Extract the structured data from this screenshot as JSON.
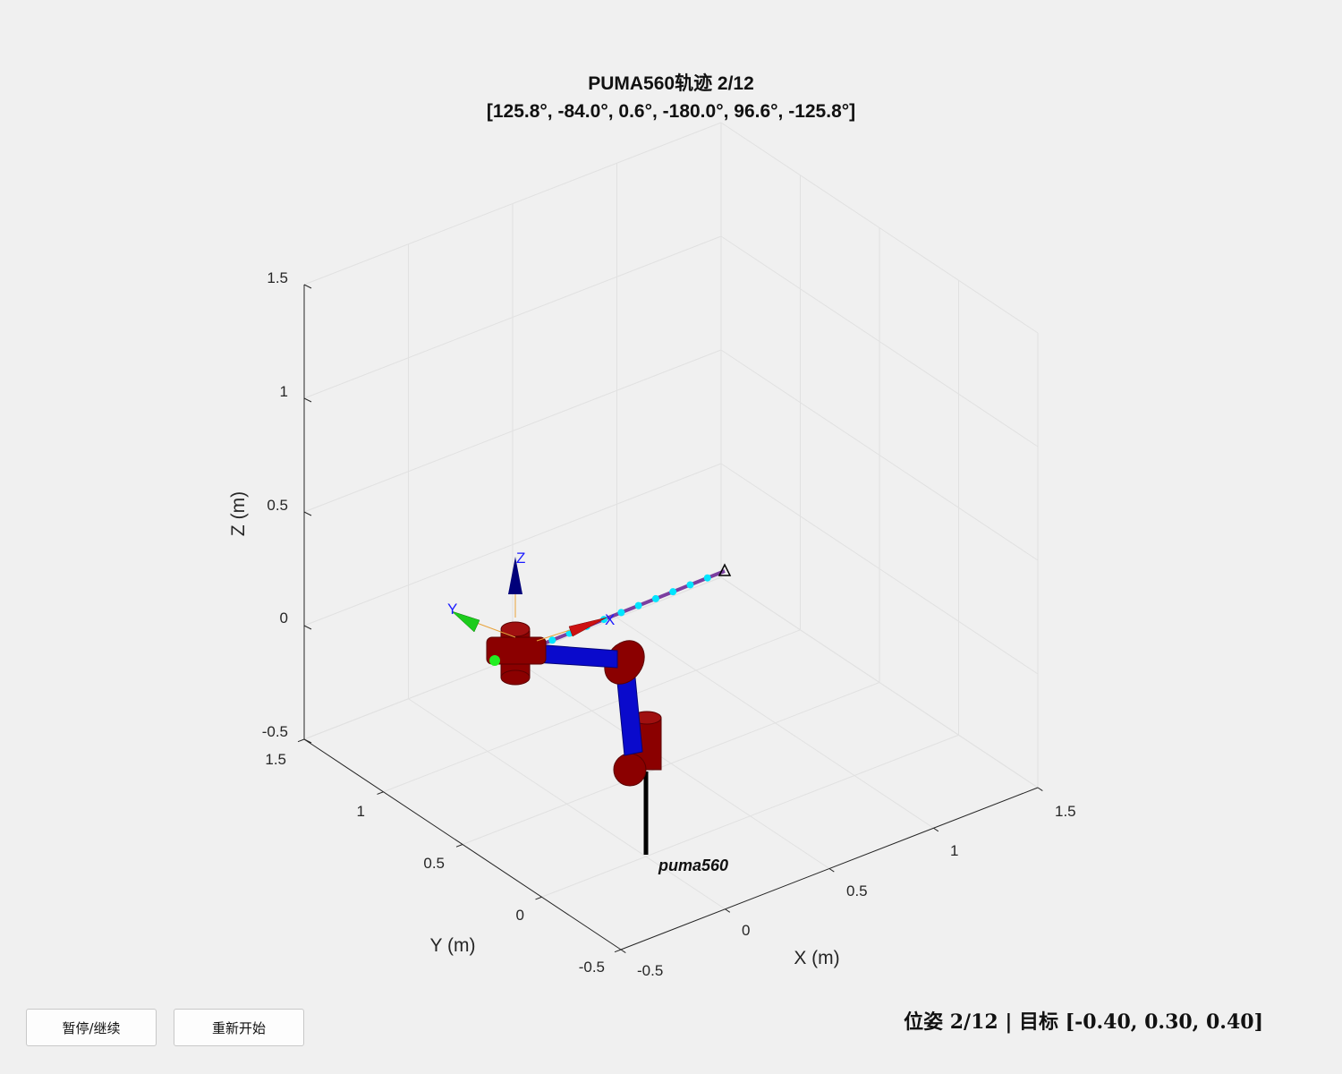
{
  "figure": {
    "title_line1": "PUMA560轨迹 2/12",
    "title_line2": "[125.8°, -84.0°, 0.6°, -180.0°, 96.6°, -125.8°]"
  },
  "axes": {
    "x_label": "X (m)",
    "y_label": "Y (m)",
    "z_label": "Z (m)",
    "x_ticks": [
      "-0.5",
      "0",
      "0.5",
      "1",
      "1.5"
    ],
    "y_ticks": [
      "-0.5",
      "0",
      "0.5",
      "1",
      "1.5"
    ],
    "z_ticks": [
      "-0.5",
      "0",
      "0.5",
      "1",
      "1.5"
    ],
    "grid": true
  },
  "scene": {
    "robot_name": "puma560",
    "frame_labels": {
      "x": "X",
      "y": "Y",
      "z": "Z"
    },
    "colors": {
      "link": "#0a0acc",
      "joint": "#8b0000",
      "base_pillar": "#000000",
      "trajectory": "#7b3fa0",
      "waypoint": "#00e5ff",
      "x_arrow": "#cc1111",
      "y_arrow": "#1ccc1c",
      "z_arrow": "#00007a"
    },
    "waypoint_count": 12
  },
  "controls": {
    "pause_label": "暂停/继续",
    "restart_label": "重新开始"
  },
  "status": {
    "text": "位姿 2/12 | 目标 [-0.40, 0.30, 0.40]"
  }
}
